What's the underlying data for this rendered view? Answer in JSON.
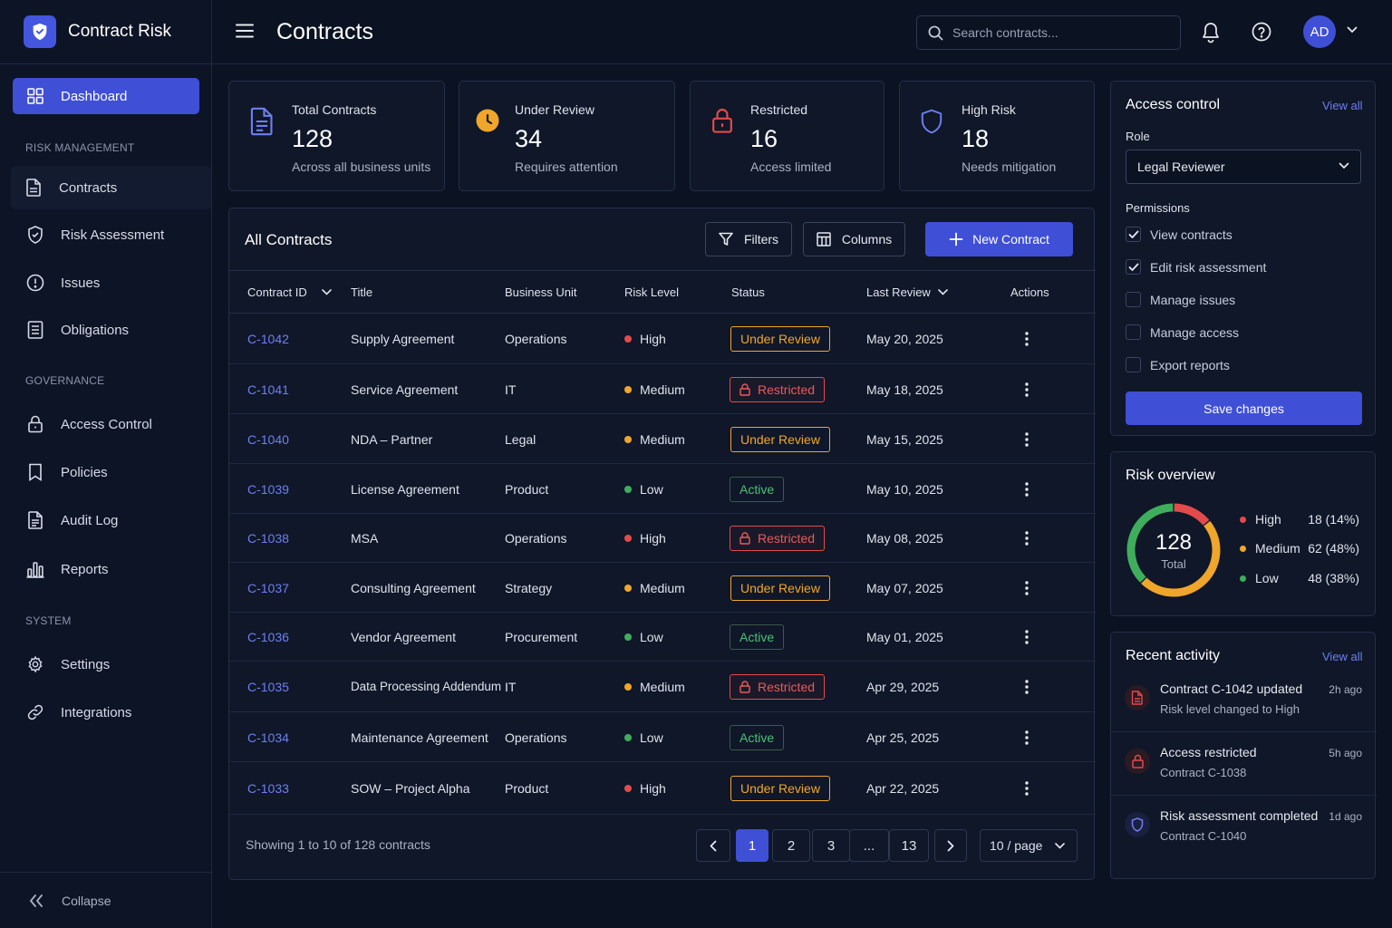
{
  "app": {
    "name": "Contract Risk"
  },
  "sidebar": {
    "dashboard": "Dashboard",
    "sections": {
      "risk": "RISK MANAGEMENT",
      "governance": "GOVERNANCE",
      "system": "SYSTEM"
    },
    "items": {
      "contracts": "Contracts",
      "risk_assessment": "Risk Assessment",
      "issues": "Issues",
      "obligations": "Obligations",
      "access_control": "Access Control",
      "policies": "Policies",
      "audit_log": "Audit Log",
      "reports": "Reports",
      "settings": "Settings",
      "integrations": "Integrations"
    },
    "collapse": "Collapse"
  },
  "header": {
    "title": "Contracts",
    "search_placeholder": "Search contracts...",
    "avatar_initials": "AD"
  },
  "stats": [
    {
      "label": "Total Contracts",
      "value": "128",
      "sub": "Across all business units",
      "icon": "document-icon"
    },
    {
      "label": "Under Review",
      "value": "34",
      "sub": "Requires attention",
      "icon": "clock-icon"
    },
    {
      "label": "Restricted",
      "value": "16",
      "sub": "Access limited",
      "icon": "lock-icon"
    },
    {
      "label": "High Risk",
      "value": "18",
      "sub": "Needs mitigation",
      "icon": "shield-icon"
    }
  ],
  "contracts_table": {
    "title": "All Contracts",
    "filters_label": "Filters",
    "columns_label": "Columns",
    "new_label": "New Contract",
    "headers": {
      "id": "Contract ID",
      "title": "Title",
      "unit": "Business Unit",
      "risk": "Risk Level",
      "status": "Status",
      "review": "Last Review",
      "actions": "Actions"
    },
    "rows": [
      {
        "id": "C-1042",
        "title": "Supply Agreement",
        "unit": "Operations",
        "risk": "High",
        "status": "Under Review",
        "review": "May 20, 2025"
      },
      {
        "id": "C-1041",
        "title": "Service Agreement",
        "unit": "IT",
        "risk": "Medium",
        "status": "Restricted",
        "review": "May 18, 2025"
      },
      {
        "id": "C-1040",
        "title": "NDA – Partner",
        "unit": "Legal",
        "risk": "Medium",
        "status": "Under Review",
        "review": "May 15, 2025"
      },
      {
        "id": "C-1039",
        "title": "License Agreement",
        "unit": "Product",
        "risk": "Low",
        "status": "Active",
        "review": "May 10, 2025"
      },
      {
        "id": "C-1038",
        "title": "MSA",
        "unit": "Operations",
        "risk": "High",
        "status": "Restricted",
        "review": "May 08, 2025"
      },
      {
        "id": "C-1037",
        "title": "Consulting Agreement",
        "unit": "Strategy",
        "risk": "Medium",
        "status": "Under Review",
        "review": "May 07, 2025"
      },
      {
        "id": "C-1036",
        "title": "Vendor Agreement",
        "unit": "Procurement",
        "risk": "Low",
        "status": "Active",
        "review": "May 01, 2025"
      },
      {
        "id": "C-1035",
        "title": "Data Processing Addendum",
        "unit": "IT",
        "risk": "Medium",
        "status": "Restricted",
        "review": "Apr 29, 2025"
      },
      {
        "id": "C-1034",
        "title": "Maintenance Agreement",
        "unit": "Operations",
        "risk": "Low",
        "status": "Active",
        "review": "Apr 25, 2025"
      },
      {
        "id": "C-1033",
        "title": "SOW – Project Alpha",
        "unit": "Product",
        "risk": "High",
        "status": "Under Review",
        "review": "Apr 22, 2025"
      }
    ],
    "footer": {
      "showing": "Showing 1 to 10 of 128 contracts",
      "pages": [
        "1",
        "2",
        "3",
        "...",
        "13"
      ],
      "current_page": "1",
      "page_size": "10 / page"
    }
  },
  "access_control": {
    "title": "Access control",
    "view_all": "View all",
    "role_label": "Role",
    "role_value": "Legal Reviewer",
    "permissions_label": "Permissions",
    "permissions": [
      {
        "label": "View contracts",
        "checked": true
      },
      {
        "label": "Edit risk assessment",
        "checked": true
      },
      {
        "label": "Manage issues",
        "checked": false
      },
      {
        "label": "Manage access",
        "checked": false
      },
      {
        "label": "Export reports",
        "checked": false
      }
    ],
    "save_label": "Save changes"
  },
  "risk_overview": {
    "title": "Risk overview",
    "total": "128",
    "total_label": "Total",
    "segments": [
      {
        "name": "High",
        "value": 18,
        "display": "18 (14%)",
        "color": "#e24b4b"
      },
      {
        "name": "Medium",
        "value": 62,
        "display": "62 (48%)",
        "color": "#f0a62a"
      },
      {
        "name": "Low",
        "value": 48,
        "display": "48 (38%)",
        "color": "#3fae5c"
      }
    ]
  },
  "recent_activity": {
    "title": "Recent activity",
    "view_all": "View all",
    "items": [
      {
        "title": "Contract C-1042 updated",
        "sub": "Risk level changed to High",
        "time": "2h ago",
        "icon": "document-icon"
      },
      {
        "title": "Access restricted",
        "sub": "Contract C-1038",
        "time": "5h ago",
        "icon": "lock-icon"
      },
      {
        "title": "Risk assessment completed",
        "sub": "Contract C-1040",
        "time": "1d ago",
        "icon": "shield-icon"
      }
    ]
  },
  "colors": {
    "accent": "#3f4fd6",
    "high": "#e24b4b",
    "medium": "#f0a62a",
    "low": "#3fae5c",
    "link": "#6f7ff0"
  }
}
